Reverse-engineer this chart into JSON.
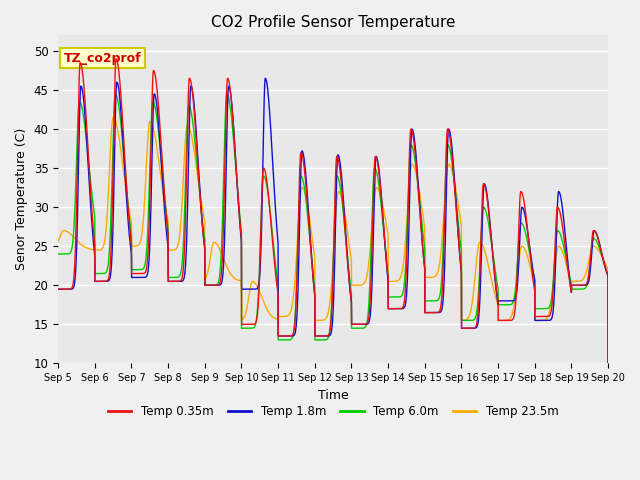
{
  "title": "CO2 Profile Sensor Temperature",
  "xlabel": "Time",
  "ylabel": "Senor Temperature (C)",
  "ylim": [
    10,
    52
  ],
  "tick_labels": [
    "Sep 5",
    "Sep 6",
    "Sep 7",
    "Sep 8",
    "Sep 9",
    "Sep 10",
    "Sep 11",
    "Sep 12",
    "Sep 13",
    "Sep 14",
    "Sep 15",
    "Sep 16",
    "Sep 17",
    "Sep 18",
    "Sep 19",
    "Sep 20"
  ],
  "annotation_text": "TZ_co2prof",
  "annotation_color": "#cc0000",
  "annotation_bg": "#ffffcc",
  "annotation_border": "#cccc00",
  "colors": {
    "red": "#ee1111",
    "blue": "#1111cc",
    "green": "#00cc00",
    "orange": "#ffaa00"
  },
  "legend_labels": [
    "Temp 0.35m",
    "Temp 1.8m",
    "Temp 6.0m",
    "Temp 23.5m"
  ],
  "background_color": "#e8e8e8",
  "title_fontsize": 11,
  "label_fontsize": 9
}
